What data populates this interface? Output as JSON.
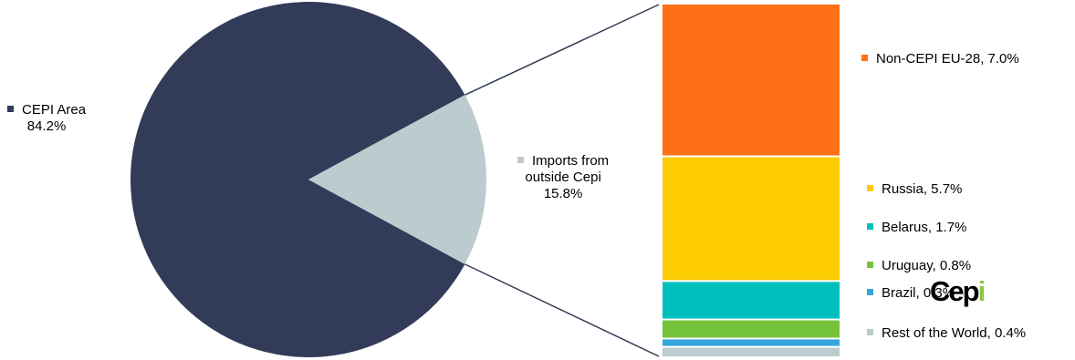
{
  "chart_data": {
    "type": "pie",
    "pie": {
      "slices": [
        {
          "name": "CEPI Area",
          "value": 84.2,
          "label": "CEPI Area",
          "value_label": "84.2%",
          "color": "#323c59"
        },
        {
          "name": "Imports from outside Cepi",
          "value": 15.8,
          "label_lines": [
            "Imports from",
            "outside Cepi"
          ],
          "value_label": "15.8%",
          "color": "#bccbce"
        }
      ]
    },
    "breakdown": {
      "type": "stacked-bar",
      "of": "Imports from outside Cepi",
      "segments": [
        {
          "name": "Non-CEPI EU-28",
          "value": 7.0,
          "label": "Non-CEPI  EU-28, 7.0%",
          "color": "#ff6f15"
        },
        {
          "name": "Russia",
          "value": 5.7,
          "label": "Russia, 5.7%",
          "color": "#fdcc00"
        },
        {
          "name": "Belarus",
          "value": 1.7,
          "label": "Belarus, 1.7%",
          "color": "#00c0be"
        },
        {
          "name": "Uruguay",
          "value": 0.8,
          "label": "Uruguay, 0.8%",
          "color": "#73c23a"
        },
        {
          "name": "Brazil",
          "value": 0.3,
          "label": "Brazil, 0.3%",
          "color": "#35a6dd"
        },
        {
          "name": "Rest of the World",
          "value": 0.4,
          "label": "Rest of the World, 0.4%",
          "color": "#bccbce"
        }
      ]
    }
  },
  "logo": {
    "text": "Cepi",
    "accent_color": "#8cc63f"
  }
}
